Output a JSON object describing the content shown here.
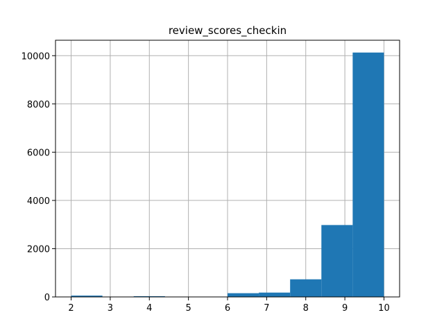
{
  "chart_data": {
    "type": "bar",
    "histogram": true,
    "title": "review_scores_checkin",
    "xlabel": "",
    "ylabel": "",
    "bins": [
      [
        2.0,
        2.8
      ],
      [
        2.8,
        3.6
      ],
      [
        3.6,
        4.4
      ],
      [
        4.4,
        5.2
      ],
      [
        5.2,
        6.0
      ],
      [
        6.0,
        6.8
      ],
      [
        6.8,
        7.6
      ],
      [
        7.6,
        8.4
      ],
      [
        8.4,
        9.2
      ],
      [
        9.2,
        10.0
      ]
    ],
    "values": [
      55,
      0,
      30,
      0,
      0,
      155,
      180,
      730,
      2980,
      10130
    ],
    "xlim": [
      1.6,
      10.4
    ],
    "ylim": [
      0,
      10640
    ],
    "xticks": [
      2,
      3,
      4,
      5,
      6,
      7,
      8,
      9,
      10
    ],
    "yticks": [
      0,
      2000,
      4000,
      6000,
      8000,
      10000
    ],
    "grid": true,
    "bar_color": "#1f77b4",
    "grid_color": "#b0b0b0"
  }
}
